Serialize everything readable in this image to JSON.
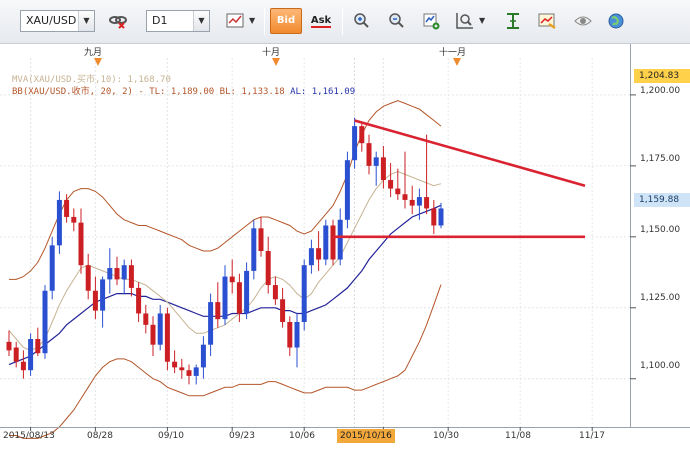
{
  "toolbar": {
    "symbol": "XAU/USD",
    "timeframe": "D1",
    "bid_label": "Bid",
    "ask_label": "Ask",
    "icons": [
      "link-icon",
      "chart-type-icon",
      "zoom-in-icon",
      "zoom-out-icon",
      "add-indicator-icon",
      "search-zoom-icon",
      "crosshair-icon",
      "template-icon",
      "eye-icon",
      "globe-icon"
    ]
  },
  "indicators": {
    "mva": "MVA(XAU/USD.买市,10): 1,168.70",
    "bb_prefix": "BB(XAU/USD.收市, 20, 2) -  TL: 1,189.00  BL: 1,133.18",
    "bb_al": "AL: 1,161.09"
  },
  "price_axis": {
    "top_tag": "1,204.83",
    "current_tag": "1,159.88",
    "ticks": [
      "1,200.00",
      "1,175.00",
      "1,150.00",
      "1,125.00",
      "1,100.00"
    ]
  },
  "time_axis": {
    "months": [
      "九月",
      "十月",
      "十一月"
    ],
    "dates": [
      "2015/08/13",
      "08/28",
      "09/10",
      "09/23",
      "10/06",
      "10/30",
      "11/08",
      "11/17"
    ],
    "highlighted_date": "2015/10/16"
  },
  "colors": {
    "bullish": "#2a4fd0",
    "bearish": "#cc1f24",
    "ma": "#c6b392",
    "bb_bands": "#b4562a",
    "bb_mid": "#23239a",
    "trendline": "#d92331",
    "accent": "#f08a2d"
  },
  "chart_data": {
    "type": "candlestick",
    "symbol": "XAU/USD",
    "timeframe": "D1",
    "ylim": [
      1083,
      1213
    ],
    "candles": [
      [
        1113,
        1117,
        1108,
        1110
      ],
      [
        1111,
        1113,
        1104,
        1106
      ],
      [
        1106,
        1110,
        1100,
        1103
      ],
      [
        1103,
        1116,
        1101,
        1114
      ],
      [
        1114,
        1118,
        1108,
        1109
      ],
      [
        1109,
        1133,
        1107,
        1131
      ],
      [
        1131,
        1150,
        1128,
        1147
      ],
      [
        1147,
        1166,
        1144,
        1163
      ],
      [
        1163,
        1165,
        1155,
        1157
      ],
      [
        1157,
        1160,
        1152,
        1155
      ],
      [
        1155,
        1160,
        1137,
        1140
      ],
      [
        1140,
        1144,
        1128,
        1131
      ],
      [
        1131,
        1136,
        1121,
        1124
      ],
      [
        1124,
        1136,
        1118,
        1135
      ],
      [
        1135,
        1146,
        1130,
        1139
      ],
      [
        1139,
        1143,
        1133,
        1135
      ],
      [
        1135,
        1142,
        1130,
        1140
      ],
      [
        1140,
        1142,
        1129,
        1132
      ],
      [
        1132,
        1134,
        1120,
        1123
      ],
      [
        1123,
        1126,
        1116,
        1119
      ],
      [
        1119,
        1122,
        1108,
        1112
      ],
      [
        1112,
        1126,
        1110,
        1123
      ],
      [
        1123,
        1125,
        1103,
        1106
      ],
      [
        1106,
        1110,
        1102,
        1104
      ],
      [
        1104,
        1107,
        1100,
        1103
      ],
      [
        1103,
        1105,
        1098,
        1101
      ],
      [
        1101,
        1105,
        1098,
        1104
      ],
      [
        1104,
        1115,
        1100,
        1112
      ],
      [
        1112,
        1130,
        1108,
        1127
      ],
      [
        1127,
        1134,
        1118,
        1121
      ],
      [
        1121,
        1140,
        1119,
        1136
      ],
      [
        1136,
        1142,
        1130,
        1134
      ],
      [
        1134,
        1137,
        1120,
        1123
      ],
      [
        1123,
        1141,
        1121,
        1138
      ],
      [
        1138,
        1156,
        1135,
        1153
      ],
      [
        1153,
        1157,
        1143,
        1145
      ],
      [
        1145,
        1150,
        1130,
        1133
      ],
      [
        1133,
        1136,
        1126,
        1128
      ],
      [
        1128,
        1132,
        1118,
        1120
      ],
      [
        1120,
        1122,
        1108,
        1111
      ],
      [
        1111,
        1123,
        1104,
        1120
      ],
      [
        1120,
        1142,
        1117,
        1140
      ],
      [
        1140,
        1149,
        1137,
        1146
      ],
      [
        1146,
        1152,
        1138,
        1142
      ],
      [
        1142,
        1156,
        1140,
        1154
      ],
      [
        1154,
        1156,
        1140,
        1142
      ],
      [
        1142,
        1160,
        1140,
        1156
      ],
      [
        1156,
        1180,
        1153,
        1177
      ],
      [
        1177,
        1192,
        1174,
        1189
      ],
      [
        1189,
        1190,
        1180,
        1183
      ],
      [
        1183,
        1186,
        1172,
        1175
      ],
      [
        1175,
        1180,
        1168,
        1178
      ],
      [
        1178,
        1182,
        1167,
        1170
      ],
      [
        1170,
        1176,
        1164,
        1167
      ],
      [
        1167,
        1174,
        1163,
        1165
      ],
      [
        1165,
        1180,
        1160,
        1163
      ],
      [
        1163,
        1168,
        1158,
        1161
      ],
      [
        1161,
        1167,
        1156,
        1164
      ],
      [
        1164,
        1186,
        1158,
        1160
      ],
      [
        1160,
        1163,
        1151,
        1154
      ],
      [
        1154,
        1162,
        1153,
        1160
      ]
    ],
    "ma": [
      1117,
      1114,
      1111,
      1110,
      1111,
      1114,
      1120,
      1126,
      1131,
      1135,
      1139,
      1140,
      1139,
      1138,
      1137,
      1136,
      1135,
      1135,
      1134,
      1133,
      1131,
      1129,
      1127,
      1124,
      1121,
      1118,
      1116,
      1116,
      1117,
      1118,
      1119,
      1121,
      1123,
      1125,
      1128,
      1132,
      1135,
      1136,
      1135,
      1133,
      1130,
      1128,
      1130,
      1134,
      1137,
      1140,
      1143,
      1148,
      1153,
      1158,
      1163,
      1167,
      1170,
      1172,
      1173,
      1172,
      1171,
      1170,
      1169,
      1168,
      1168.7
    ],
    "bb_mid": [
      1105,
      1106,
      1107,
      1108,
      1110,
      1112,
      1114,
      1116,
      1119,
      1121,
      1123,
      1125,
      1127,
      1128,
      1129,
      1130,
      1130,
      1130,
      1129,
      1129,
      1128,
      1128,
      1127,
      1126,
      1125,
      1124,
      1123,
      1122,
      1122,
      1122,
      1122,
      1123,
      1123,
      1123,
      1124,
      1125,
      1125,
      1125,
      1124,
      1124,
      1123,
      1123,
      1124,
      1125,
      1126,
      1128,
      1130,
      1132,
      1135,
      1138,
      1142,
      1145,
      1148,
      1151,
      1153,
      1155,
      1157,
      1158,
      1159,
      1160,
      1161.09
    ],
    "bb_upper": [
      1135,
      1135,
      1136,
      1138,
      1141,
      1146,
      1152,
      1158,
      1163,
      1166,
      1167,
      1167,
      1166,
      1164,
      1161,
      1158,
      1156,
      1155,
      1154,
      1154,
      1153,
      1152,
      1151,
      1150,
      1149,
      1147,
      1146,
      1145,
      1145,
      1146,
      1148,
      1150,
      1152,
      1154,
      1156,
      1157,
      1157,
      1156,
      1155,
      1154,
      1152,
      1151,
      1152,
      1155,
      1158,
      1161,
      1166,
      1172,
      1180,
      1186,
      1191,
      1194,
      1196,
      1197,
      1198,
      1197,
      1196,
      1195,
      1193,
      1191,
      1189
    ],
    "bb_lower": [
      1080,
      1080,
      1079,
      1079,
      1079,
      1080,
      1081,
      1083,
      1086,
      1089,
      1093,
      1097,
      1101,
      1104,
      1106,
      1107,
      1107,
      1106,
      1104,
      1102,
      1100,
      1099,
      1097,
      1096,
      1095,
      1094,
      1094,
      1094,
      1095,
      1096,
      1097,
      1097,
      1098,
      1098,
      1098,
      1098,
      1099,
      1099,
      1098,
      1097,
      1096,
      1095,
      1095,
      1096,
      1097,
      1097,
      1097,
      1097,
      1096,
      1096,
      1097,
      1098,
      1099,
      1100,
      1101,
      1103,
      1108,
      1113,
      1119,
      1126,
      1133.18
    ],
    "trendlines": [
      {
        "from": [
          48,
          1191
        ],
        "to": [
          80,
          1168
        ]
      },
      {
        "from": [
          45,
          1150
        ],
        "to": [
          80,
          1150
        ]
      }
    ]
  }
}
